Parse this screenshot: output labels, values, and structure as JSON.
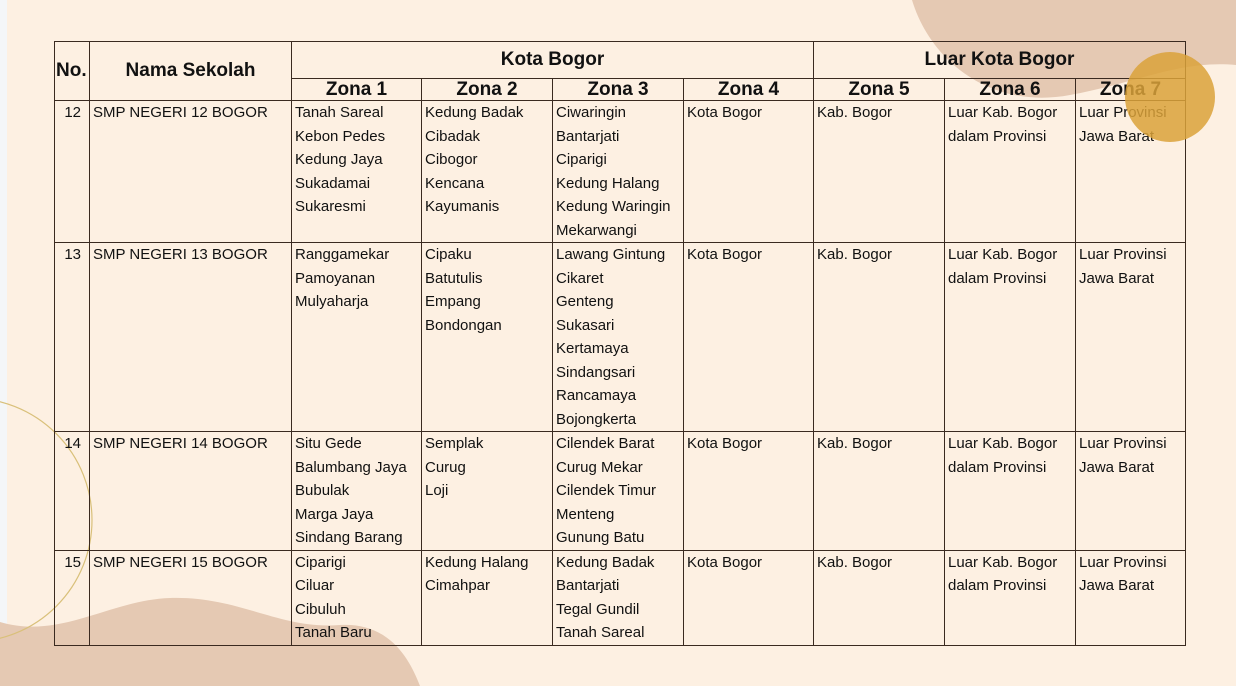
{
  "colors": {
    "background": "#fdf0e2",
    "blob": "#e5c9b3",
    "accent_circle": "#dba23a",
    "thin_circle": "#d9c07a",
    "border": "#3a2a20"
  },
  "header": {
    "no": "No.",
    "nama": "Nama Sekolah",
    "kota": "Kota Bogor",
    "luar": "Luar Kota Bogor",
    "zones": [
      "Zona 1",
      "Zona 2",
      "Zona 3",
      "Zona 4",
      "Zona 5",
      "Zona 6",
      "Zona 7"
    ]
  },
  "rows": [
    {
      "no": "12",
      "nama": "SMP NEGERI 12 BOGOR",
      "zones": [
        [
          "Tanah Sareal",
          "Kebon Pedes",
          "Kedung Jaya",
          "Sukadamai",
          "Sukaresmi"
        ],
        [
          "Kedung Badak",
          "Cibadak",
          "Cibogor",
          "Kencana",
          "Kayumanis"
        ],
        [
          "Ciwaringin",
          "Bantarjati",
          "Ciparigi",
          "Kedung Halang",
          "Kedung Waringin",
          "Mekarwangi"
        ],
        [
          "Kota Bogor"
        ],
        [
          "Kab. Bogor"
        ],
        [
          "Luar Kab. Bogor",
          "dalam Provinsi"
        ],
        [
          "Luar Provinsi",
          "Jawa Barat"
        ]
      ]
    },
    {
      "no": "13",
      "nama": "SMP NEGERI 13 BOGOR",
      "zones": [
        [
          "Ranggamekar",
          "Pamoyanan",
          "Mulyaharja"
        ],
        [
          "Cipaku",
          "Batutulis",
          "Empang",
          "Bondongan"
        ],
        [
          "Lawang Gintung",
          "Cikaret",
          "Genteng",
          "Sukasari",
          "Kertamaya",
          "Sindangsari",
          "Rancamaya",
          "Bojongkerta"
        ],
        [
          "Kota Bogor"
        ],
        [
          "Kab. Bogor"
        ],
        [
          "Luar Kab. Bogor",
          "dalam Provinsi"
        ],
        [
          "Luar Provinsi",
          "Jawa Barat"
        ]
      ]
    },
    {
      "no": "14",
      "nama": "SMP NEGERI 14 BOGOR",
      "zones": [
        [
          "Situ Gede",
          "Balumbang Jaya",
          "Bubulak",
          "Marga Jaya",
          "Sindang Barang"
        ],
        [
          "Semplak",
          "Curug",
          "Loji"
        ],
        [
          "Cilendek Barat",
          "Curug Mekar",
          "Cilendek Timur",
          "Menteng",
          "Gunung Batu"
        ],
        [
          "Kota Bogor"
        ],
        [
          "Kab. Bogor"
        ],
        [
          "Luar Kab. Bogor",
          "dalam Provinsi"
        ],
        [
          "Luar Provinsi",
          "Jawa Barat"
        ]
      ]
    },
    {
      "no": "15",
      "nama": "SMP NEGERI 15 BOGOR",
      "zones": [
        [
          "Ciparigi",
          "Ciluar",
          "Cibuluh",
          "Tanah Baru"
        ],
        [
          "Kedung Halang",
          "Cimahpar"
        ],
        [
          "Kedung Badak",
          "Bantarjati",
          "Tegal Gundil",
          "Tanah Sareal"
        ],
        [
          "Kota Bogor"
        ],
        [
          "Kab. Bogor"
        ],
        [
          "Luar Kab. Bogor",
          "dalam Provinsi"
        ],
        [
          "Luar Provinsi",
          "Jawa Barat"
        ]
      ]
    }
  ]
}
